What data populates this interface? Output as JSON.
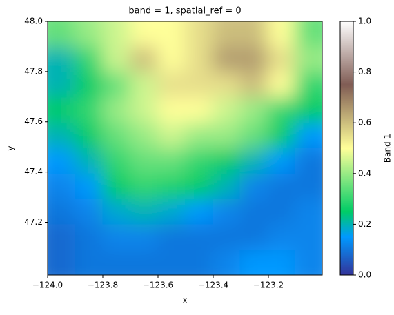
{
  "chart_data": {
    "type": "image",
    "title": "band = 1, spatial_ref = 0",
    "x_label": "x",
    "y_label": "y",
    "colorbar_label": "Band 1",
    "colormap": "terrain",
    "xlim": [
      -124.0,
      -123.005
    ],
    "ylim": [
      46.99,
      48.0
    ],
    "xticks": [
      {
        "value": -124.0,
        "label": "−124.0"
      },
      {
        "value": -123.8,
        "label": "−123.8"
      },
      {
        "value": -123.6,
        "label": "−123.6"
      },
      {
        "value": -123.4,
        "label": "−123.4"
      },
      {
        "value": -123.2,
        "label": "−123.2"
      }
    ],
    "yticks": [
      {
        "value": 48.0,
        "label": "48.0"
      },
      47.8,
      47.6,
      47.4,
      47.2
    ],
    "clim": [
      0,
      1
    ],
    "cticks": [
      {
        "value": 0,
        "label": "0.0"
      },
      0.2,
      0.4,
      0.6,
      0.8,
      {
        "value": 1,
        "label": "1.0"
      }
    ],
    "z": [
      [
        0.35,
        0.4,
        0.45,
        0.5,
        0.5,
        0.55,
        0.6,
        0.6,
        0.5,
        0.35
      ],
      [
        0.2,
        0.3,
        0.45,
        0.6,
        0.5,
        0.55,
        0.65,
        0.65,
        0.55,
        0.4
      ],
      [
        0.2,
        0.25,
        0.35,
        0.45,
        0.55,
        0.55,
        0.55,
        0.6,
        0.5,
        0.3
      ],
      [
        0.25,
        0.3,
        0.4,
        0.45,
        0.5,
        0.5,
        0.45,
        0.4,
        0.3,
        0.25
      ],
      [
        0.2,
        0.25,
        0.35,
        0.4,
        0.45,
        0.4,
        0.4,
        0.35,
        0.25,
        0.15
      ],
      [
        0.15,
        0.2,
        0.3,
        0.35,
        0.35,
        0.3,
        0.25,
        0.2,
        0.15,
        0.1
      ],
      [
        0.12,
        0.15,
        0.25,
        0.3,
        0.28,
        0.25,
        0.2,
        0.12,
        0.1,
        0.1
      ],
      [
        0.1,
        0.12,
        0.18,
        0.2,
        0.18,
        0.15,
        0.12,
        0.1,
        0.1,
        0.12
      ],
      [
        0.08,
        0.1,
        0.12,
        0.12,
        0.1,
        0.1,
        0.1,
        0.1,
        0.12,
        0.12
      ],
      [
        0.08,
        0.1,
        0.1,
        0.1,
        0.1,
        0.1,
        0.12,
        0.15,
        0.15,
        0.12
      ]
    ]
  }
}
